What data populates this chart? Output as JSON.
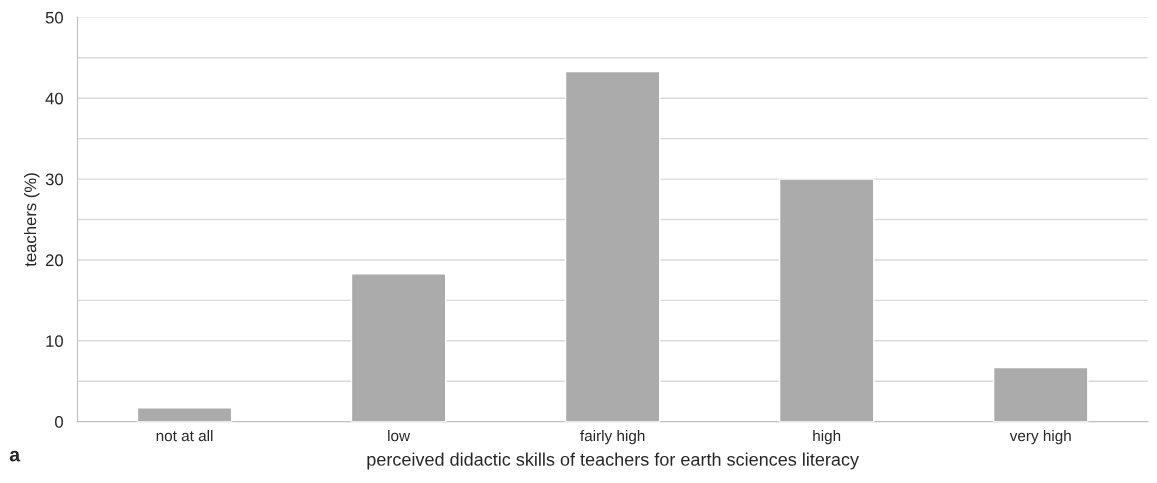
{
  "chart_data": {
    "type": "bar",
    "categories": [
      "not at all",
      "low",
      "fairly high",
      "high",
      "very high"
    ],
    "values": [
      1.7,
      18.3,
      43.3,
      30,
      6.7
    ],
    "color": "#ababab",
    "xlabel": "perceived didactic skills of teachers for earth sciences literacy",
    "ylabel": "teachers (%)",
    "ylim": [
      0,
      50
    ],
    "yticks": [
      0,
      {
        "value": 5,
        "label": null
      },
      10,
      {
        "value": 15,
        "label": null
      },
      20,
      {
        "value": 25,
        "label": null
      },
      30,
      {
        "value": 35,
        "label": null
      },
      40,
      {
        "value": 45,
        "label": null
      },
      50
    ],
    "grid": "y",
    "annotations": [
      "a"
    ]
  }
}
